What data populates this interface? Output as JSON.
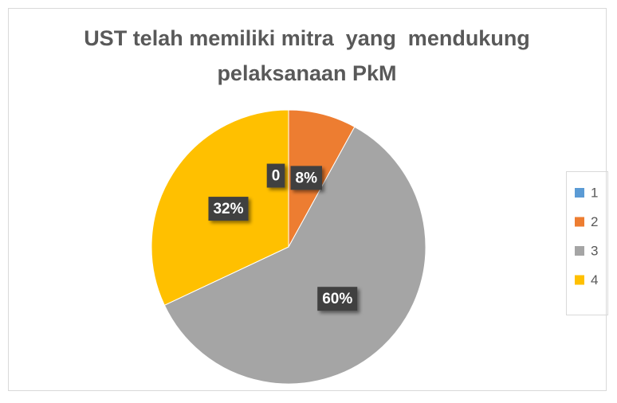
{
  "chart_data": {
    "type": "pie",
    "title": [
      "UST telah memiliki mitra  yang  mendukung",
      "pelaksanaan PkM"
    ],
    "categories": [
      "1",
      "2",
      "3",
      "4"
    ],
    "values": [
      0,
      8,
      60,
      32
    ],
    "value_labels": [
      "0",
      "8%",
      "60%",
      "32%"
    ],
    "colors": [
      "#5b9bd5",
      "#ed7d31",
      "#a5a5a5",
      "#ffc000"
    ],
    "legend": "right"
  }
}
